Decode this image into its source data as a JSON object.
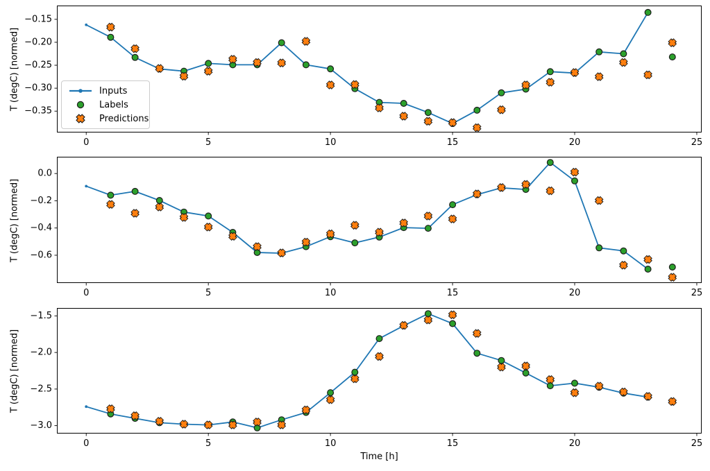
{
  "figure": {
    "xlabel": "Time [h]",
    "ylabel": "T (degC) [normed]",
    "colors": {
      "inputs": "#1f77b4",
      "labels": "#2ca02c",
      "predictions": "#ff7f0e",
      "marker_edge": "#1c1c1c",
      "spine": "#000000",
      "legend_border": "#cccccc"
    },
    "legend": {
      "position": "upper-left-inset",
      "items": [
        "Inputs",
        "Labels",
        "Predictions"
      ]
    }
  },
  "chart_data": [
    {
      "id": "subplot-1",
      "type": "line",
      "title": "",
      "xlabel": "",
      "ylabel": "T (degC) [normed]",
      "grid": false,
      "xlim": [
        -1.2,
        25.2
      ],
      "ylim": [
        -0.3965,
        -0.12
      ],
      "xticks": [
        0,
        5,
        10,
        15,
        20,
        25
      ],
      "xtick_labels": [
        "0",
        "5",
        "10",
        "15",
        "20",
        "25"
      ],
      "yticks": [
        -0.15,
        -0.2,
        -0.25,
        -0.3,
        -0.35
      ],
      "ytick_labels": [
        "−0.15",
        "−0.20",
        "−0.25",
        "−0.30",
        "−0.35"
      ],
      "series": [
        {
          "name": "Inputs",
          "type": "line",
          "marker": "dot",
          "x": [
            0,
            1,
            2,
            3,
            4,
            5,
            6,
            7,
            8,
            9,
            10,
            11,
            12,
            13,
            14,
            15,
            16,
            17,
            18,
            19,
            20,
            21,
            22,
            23
          ],
          "y": [
            -0.162,
            -0.189,
            -0.233,
            -0.258,
            -0.263,
            -0.246,
            -0.249,
            -0.249,
            -0.201,
            -0.249,
            -0.258,
            -0.301,
            -0.331,
            -0.333,
            -0.353,
            -0.377,
            -0.348,
            -0.31,
            -0.302,
            -0.264,
            -0.267,
            -0.221,
            -0.225,
            -0.135
          ]
        },
        {
          "name": "Labels",
          "type": "scatter",
          "marker": "circle",
          "x": [
            1,
            2,
            3,
            4,
            5,
            6,
            7,
            8,
            9,
            10,
            11,
            12,
            13,
            14,
            15,
            16,
            17,
            18,
            19,
            20,
            21,
            22,
            23,
            24
          ],
          "y": [
            -0.189,
            -0.233,
            -0.258,
            -0.263,
            -0.246,
            -0.249,
            -0.249,
            -0.201,
            -0.249,
            -0.258,
            -0.301,
            -0.331,
            -0.333,
            -0.353,
            -0.377,
            -0.348,
            -0.31,
            -0.302,
            -0.264,
            -0.267,
            -0.221,
            -0.225,
            -0.135,
            -0.232
          ]
        },
        {
          "name": "Predictions",
          "type": "scatter",
          "marker": "X",
          "x": [
            1,
            2,
            3,
            4,
            5,
            6,
            7,
            8,
            9,
            10,
            11,
            12,
            13,
            14,
            15,
            16,
            17,
            18,
            19,
            20,
            21,
            22,
            23,
            24
          ],
          "y": [
            -0.167,
            -0.214,
            -0.257,
            -0.274,
            -0.263,
            -0.237,
            -0.244,
            -0.245,
            -0.198,
            -0.293,
            -0.292,
            -0.343,
            -0.361,
            -0.372,
            -0.375,
            -0.386,
            -0.347,
            -0.293,
            -0.287,
            -0.266,
            -0.275,
            -0.244,
            -0.271,
            -0.201
          ]
        }
      ]
    },
    {
      "id": "subplot-2",
      "type": "line",
      "title": "",
      "xlabel": "",
      "ylabel": "T (degC) [normed]",
      "grid": false,
      "xlim": [
        -1.2,
        25.2
      ],
      "ylim": [
        -0.804,
        0.123
      ],
      "xticks": [
        0,
        5,
        10,
        15,
        20,
        25
      ],
      "xtick_labels": [
        "0",
        "5",
        "10",
        "15",
        "20",
        "25"
      ],
      "yticks": [
        0.0,
        -0.2,
        -0.4,
        -0.6
      ],
      "ytick_labels": [
        "0.0",
        "−0.2",
        "−0.4",
        "−0.6"
      ],
      "series": [
        {
          "name": "Inputs",
          "type": "line",
          "marker": "dot",
          "x": [
            0,
            1,
            2,
            3,
            4,
            5,
            6,
            7,
            8,
            9,
            10,
            11,
            12,
            13,
            14,
            15,
            16,
            17,
            18,
            19,
            20,
            21,
            22,
            23
          ],
          "y": [
            -0.093,
            -0.159,
            -0.131,
            -0.198,
            -0.283,
            -0.312,
            -0.432,
            -0.58,
            -0.585,
            -0.537,
            -0.464,
            -0.509,
            -0.467,
            -0.397,
            -0.402,
            -0.229,
            -0.155,
            -0.105,
            -0.117,
            0.081,
            -0.054,
            -0.546,
            -0.568,
            -0.702
          ]
        },
        {
          "name": "Labels",
          "type": "scatter",
          "marker": "circle",
          "x": [
            1,
            2,
            3,
            4,
            5,
            6,
            7,
            8,
            9,
            10,
            11,
            12,
            13,
            14,
            15,
            16,
            17,
            18,
            19,
            20,
            21,
            22,
            23,
            24
          ],
          "y": [
            -0.159,
            -0.131,
            -0.198,
            -0.283,
            -0.312,
            -0.432,
            -0.58,
            -0.585,
            -0.537,
            -0.464,
            -0.509,
            -0.467,
            -0.397,
            -0.402,
            -0.229,
            -0.155,
            -0.105,
            -0.117,
            0.081,
            -0.054,
            -0.546,
            -0.568,
            -0.702,
            -0.687
          ]
        },
        {
          "name": "Predictions",
          "type": "scatter",
          "marker": "X",
          "x": [
            1,
            2,
            3,
            4,
            5,
            6,
            7,
            8,
            9,
            10,
            11,
            12,
            13,
            14,
            15,
            16,
            17,
            18,
            19,
            20,
            21,
            22,
            23,
            24
          ],
          "y": [
            -0.227,
            -0.292,
            -0.246,
            -0.322,
            -0.393,
            -0.461,
            -0.537,
            -0.583,
            -0.504,
            -0.443,
            -0.38,
            -0.431,
            -0.363,
            -0.312,
            -0.334,
            -0.15,
            -0.103,
            -0.08,
            -0.127,
            0.01,
            -0.198,
            -0.673,
            -0.631,
            -0.762
          ]
        }
      ]
    },
    {
      "id": "subplot-3",
      "type": "line",
      "title": "",
      "xlabel": "Time [h]",
      "ylabel": "T (degC) [normed]",
      "grid": false,
      "xlim": [
        -1.2,
        25.2
      ],
      "ylim": [
        -3.108,
        -1.392
      ],
      "xticks": [
        0,
        5,
        10,
        15,
        20,
        25
      ],
      "xtick_labels": [
        "0",
        "5",
        "10",
        "15",
        "20",
        "25"
      ],
      "yticks": [
        -1.5,
        -2.0,
        -2.5,
        -3.0
      ],
      "ytick_labels": [
        "−1.5",
        "−2.0",
        "−2.5",
        "−3.0"
      ],
      "series": [
        {
          "name": "Inputs",
          "type": "line",
          "marker": "dot",
          "x": [
            0,
            1,
            2,
            3,
            4,
            5,
            6,
            7,
            8,
            9,
            10,
            11,
            12,
            13,
            14,
            15,
            16,
            17,
            18,
            19,
            20,
            21,
            22,
            23
          ],
          "y": [
            -2.74,
            -2.84,
            -2.9,
            -2.96,
            -2.98,
            -2.99,
            -2.95,
            -3.03,
            -2.92,
            -2.82,
            -2.55,
            -2.27,
            -1.81,
            -1.635,
            -1.47,
            -1.605,
            -2.01,
            -2.11,
            -2.28,
            -2.455,
            -2.42,
            -2.475,
            -2.555,
            -2.61
          ]
        },
        {
          "name": "Labels",
          "type": "scatter",
          "marker": "circle",
          "x": [
            1,
            2,
            3,
            4,
            5,
            6,
            7,
            8,
            9,
            10,
            11,
            12,
            13,
            14,
            15,
            16,
            17,
            18,
            19,
            20,
            21,
            22,
            23,
            24
          ],
          "y": [
            -2.84,
            -2.9,
            -2.96,
            -2.98,
            -2.99,
            -2.95,
            -3.03,
            -2.92,
            -2.82,
            -2.55,
            -2.27,
            -1.81,
            -1.635,
            -1.47,
            -1.605,
            -2.01,
            -2.11,
            -2.28,
            -2.455,
            -2.42,
            -2.475,
            -2.555,
            -2.61,
            -2.675
          ]
        },
        {
          "name": "Predictions",
          "type": "scatter",
          "marker": "X",
          "x": [
            1,
            2,
            3,
            4,
            5,
            6,
            7,
            8,
            9,
            10,
            11,
            12,
            13,
            14,
            15,
            16,
            17,
            18,
            19,
            20,
            21,
            22,
            23,
            24
          ],
          "y": [
            -2.77,
            -2.865,
            -2.94,
            -2.98,
            -2.99,
            -2.99,
            -2.95,
            -2.99,
            -2.785,
            -2.645,
            -2.36,
            -2.055,
            -1.63,
            -1.555,
            -1.485,
            -1.74,
            -2.2,
            -2.185,
            -2.37,
            -2.55,
            -2.46,
            -2.54,
            -2.6,
            -2.67
          ]
        }
      ]
    }
  ]
}
